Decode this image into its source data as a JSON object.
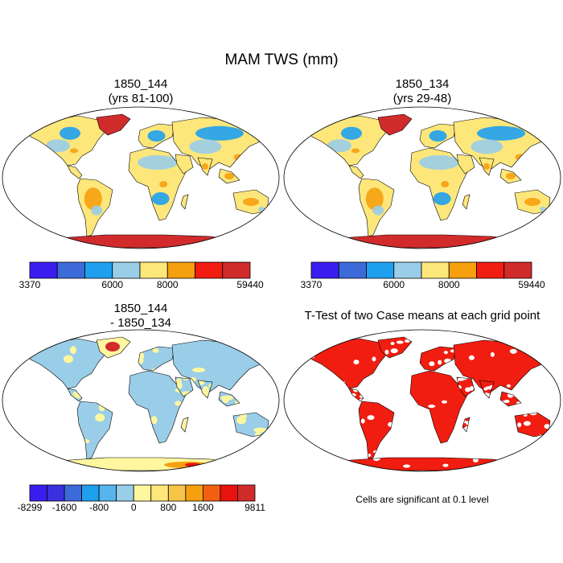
{
  "figure": {
    "title": "MAM TWS (mm)"
  },
  "panels": [
    {
      "id": "p1",
      "title_line1": "1850_144",
      "title_line2": "(yrs 81-100)"
    },
    {
      "id": "p2",
      "title_line1": "1850_134",
      "title_line2": "(yrs 29-48)"
    },
    {
      "id": "p3",
      "title_line1": "1850_144",
      "title_line2": "- 1850_134"
    },
    {
      "id": "p4",
      "title_line1": "T-Test of two Case means at each grid point",
      "title_line2": ""
    }
  ],
  "colorbar_abs": {
    "colors": [
      "#3a1ef0",
      "#3c6ad8",
      "#1ea0ef",
      "#9acde8",
      "#fde77a",
      "#f6a00f",
      "#f11d10",
      "#d12b2b"
    ],
    "labels": [
      {
        "text": "3370",
        "index": 0
      },
      {
        "text": "6000",
        "index": 3
      },
      {
        "text": "8000",
        "index": 5
      },
      {
        "text": "59440",
        "index": 8
      }
    ]
  },
  "colorbar_diff": {
    "colors": [
      "#3a1ef0",
      "#3b2fe0",
      "#3c6ad8",
      "#1ea0ef",
      "#56b5ee",
      "#9acde8",
      "#fff7a0",
      "#fde77a",
      "#f7c44a",
      "#f6a00f",
      "#f35f10",
      "#e8120e",
      "#d12b2b"
    ],
    "labels": [
      {
        "text": "-8299",
        "index": 0
      },
      {
        "text": "-1600",
        "index": 2
      },
      {
        "text": "-800",
        "index": 4
      },
      {
        "text": "0",
        "index": 6
      },
      {
        "text": "800",
        "index": 8
      },
      {
        "text": "1600",
        "index": 10
      },
      {
        "text": "9811",
        "index": 13
      }
    ]
  },
  "significance_note": "Cells are significant at 0.1 level",
  "map_colors": {
    "ocean": "#ffffff",
    "land_abs": "#fde77a",
    "land_abs_blue": "#9acde8",
    "land_abs_dark": "#1ea0ef",
    "land_abs_orange": "#f6a00f",
    "ice": "#d12b2b",
    "land_diff": "#9acde8",
    "land_diff_yellow": "#fff7a0",
    "significant": "#f11d10",
    "outline": "#000000"
  }
}
